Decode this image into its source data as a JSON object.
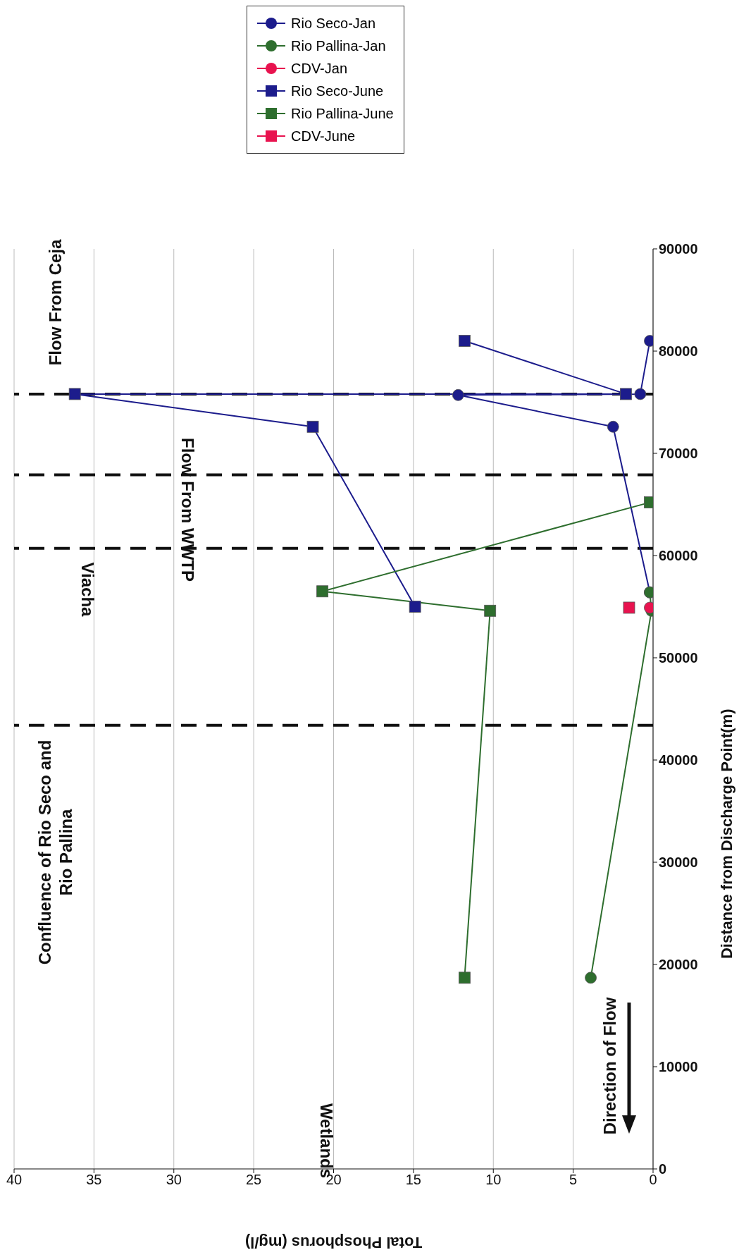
{
  "chart_data": {
    "type": "line",
    "xlabel": "Total Phosphorus (mg/l)",
    "ylabel": "Distance from Discharge Point(m)",
    "xlim": [
      40,
      0
    ],
    "xticks": [
      40,
      35,
      30,
      25,
      20,
      15,
      10,
      5,
      0
    ],
    "ylim": [
      0,
      90000
    ],
    "yticks": [
      0,
      10000,
      20000,
      30000,
      40000,
      50000,
      60000,
      70000,
      80000,
      90000
    ],
    "grid": "x",
    "legend": "top",
    "series": [
      {
        "name": "Rio Seco-Jan",
        "color": "#1c1c8c",
        "marker": "circle",
        "x": [
          0.2,
          0.8,
          12.2,
          2.5,
          0.2
        ],
        "values": [
          81000,
          75800,
          75700,
          72600,
          56400
        ]
      },
      {
        "name": "Rio Pallina-Jan",
        "color": "#2e6e2e",
        "marker": "circle",
        "x": [
          3.9,
          0.1,
          0.2
        ],
        "values": [
          18700,
          54600,
          56400
        ]
      },
      {
        "name": "CDV-Jan",
        "color": "#e8134f",
        "marker": "circle",
        "x": [
          0.2
        ],
        "values": [
          54900
        ]
      },
      {
        "name": "Rio Seco-June",
        "color": "#1c1c8c",
        "marker": "square",
        "x": [
          11.8,
          1.7,
          36.2,
          21.3,
          14.9
        ],
        "values": [
          81000,
          75800,
          75800,
          72600,
          55000
        ]
      },
      {
        "name": "Rio Pallina-June",
        "color": "#2e6e2e",
        "marker": "square",
        "x": [
          11.8,
          10.2,
          20.7,
          0.2
        ],
        "values": [
          18700,
          54600,
          56500,
          65200
        ]
      },
      {
        "name": "CDV-June",
        "color": "#e8134f",
        "marker": "square",
        "x": [
          1.5
        ],
        "values": [
          54900
        ]
      }
    ],
    "ref_lines": [
      {
        "axis": "y",
        "value": 43400,
        "line_style": "dashed"
      },
      {
        "axis": "y",
        "value": 60700,
        "line_style": "dashed"
      },
      {
        "axis": "y",
        "value": 67900,
        "line_style": "dashed"
      },
      {
        "axis": "y",
        "value": 75800,
        "line_style": "dashed"
      }
    ],
    "annotations": [
      "Confluence of Rio Seco and Rio Pallina",
      "Viacha",
      "Flow From WWTP",
      "Flow From Ceja",
      "Wetlands",
      "Direction of Flow"
    ]
  }
}
